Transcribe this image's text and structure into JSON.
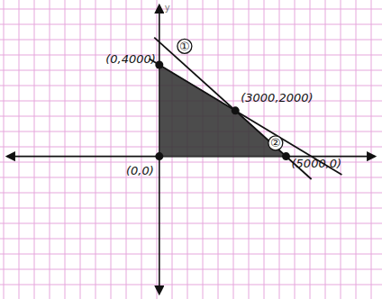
{
  "chart_data": {
    "type": "line",
    "ylabel": "y",
    "xlim": [
      -6000,
      8500
    ],
    "ylim": [
      -6000,
      6600
    ],
    "tick_labels": false,
    "series": [
      {
        "name": "①",
        "color": "#111111",
        "x": [
          -200,
          6000
        ],
        "values": [
          5200,
          -1000
        ]
      },
      {
        "name": "②",
        "color": "#111111",
        "x": [
          -400,
          7200
        ],
        "values": [
          4267,
          -800
        ]
      }
    ],
    "region": {
      "color": "#333333",
      "x": [
        0,
        0,
        3000,
        5000
      ],
      "values": [
        0,
        4000,
        2000,
        0
      ]
    },
    "points": {
      "color": "#111111",
      "x": [
        0,
        0,
        3000,
        5000
      ],
      "values": [
        0,
        4000,
        2000,
        0
      ],
      "labels": [
        "(0,0)",
        "(0,4000)",
        "(3000,2000)",
        "(5000,0)"
      ]
    }
  }
}
